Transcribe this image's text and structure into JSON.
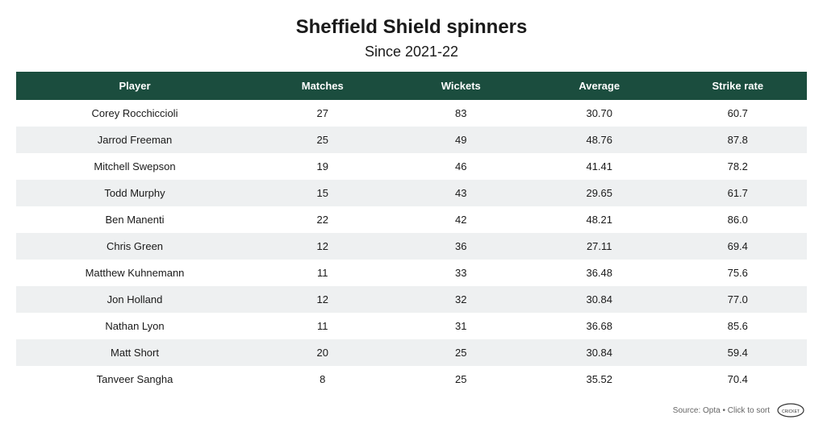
{
  "title": "Sheffield Shield spinners",
  "subtitle": "Since 2021-22",
  "columns": [
    "Player",
    "Matches",
    "Wickets",
    "Average",
    "Strike rate"
  ],
  "rows": [
    [
      "Corey Rocchiccioli",
      "27",
      "83",
      "30.70",
      "60.7"
    ],
    [
      "Jarrod Freeman",
      "25",
      "49",
      "48.76",
      "87.8"
    ],
    [
      "Mitchell Swepson",
      "19",
      "46",
      "41.41",
      "78.2"
    ],
    [
      "Todd Murphy",
      "15",
      "43",
      "29.65",
      "61.7"
    ],
    [
      "Ben Manenti",
      "22",
      "42",
      "48.21",
      "86.0"
    ],
    [
      "Chris Green",
      "12",
      "36",
      "27.11",
      "69.4"
    ],
    [
      "Matthew Kuhnemann",
      "11",
      "33",
      "36.48",
      "75.6"
    ],
    [
      "Jon Holland",
      "12",
      "32",
      "30.84",
      "77.0"
    ],
    [
      "Nathan Lyon",
      "11",
      "31",
      "36.68",
      "85.6"
    ],
    [
      "Matt Short",
      "20",
      "25",
      "30.84",
      "59.4"
    ],
    [
      "Tanveer Sangha",
      "8",
      "25",
      "35.52",
      "70.4"
    ]
  ],
  "footer_text": "Source: Opta • Click to sort",
  "styling": {
    "header_bg": "#1b4d3e",
    "header_text_color": "#ffffff",
    "row_odd_bg": "#ffffff",
    "row_even_bg": "#eef0f1",
    "title_fontsize": 24,
    "subtitle_fontsize": 18,
    "header_fontsize": 13,
    "cell_fontsize": 13,
    "column_widths": [
      "30%",
      "17.5%",
      "17.5%",
      "17.5%",
      "17.5%"
    ]
  }
}
